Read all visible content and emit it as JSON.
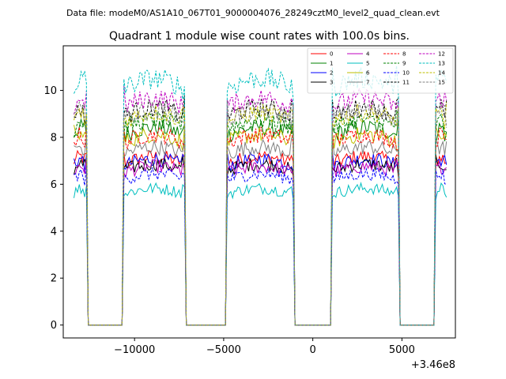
{
  "figure": {
    "suptitle": "Data file: modeM0/AS1A10_067T01_9000004076_28249cztM0_level2_quad_clean.evt"
  },
  "chart_data": {
    "type": "line",
    "title": "Quadrant 1 module wise count rates with 100.0s bins.",
    "xlabel": "",
    "ylabel": "",
    "x_offset_label": "+3.46e8",
    "x_offset": 346000000,
    "xlim": [
      -14000,
      8000
    ],
    "ylim": [
      -0.55,
      11.9
    ],
    "x_ticks": [
      -10000,
      -5000,
      0,
      5000
    ],
    "x_tick_labels": [
      "−10000",
      "−5000",
      "0",
      "5000"
    ],
    "y_ticks": [
      0,
      2,
      4,
      6,
      8,
      10
    ],
    "y_tick_labels": [
      "0",
      "2",
      "4",
      "6",
      "8",
      "10"
    ],
    "grid": false,
    "legend_location": "upper right",
    "legend_columns": 4,
    "bin_size_s": 100,
    "orbit_segments": [
      {
        "start": -13400,
        "end": -12700
      },
      {
        "start": -10600,
        "end": -7200
      },
      {
        "start": -4800,
        "end": -1100
      },
      {
        "start": 1100,
        "end": 4800
      },
      {
        "start": 6900,
        "end": 7500
      }
    ],
    "series": [
      {
        "name": "0",
        "color": "#ff0000",
        "dash": "solid",
        "level": 6.9
      },
      {
        "name": "1",
        "color": "#008000",
        "dash": "solid",
        "level": 8.1
      },
      {
        "name": "2",
        "color": "#0000ff",
        "dash": "solid",
        "level": 6.8
      },
      {
        "name": "3",
        "color": "#000000",
        "dash": "solid",
        "level": 6.6
      },
      {
        "name": "4",
        "color": "#bf00bf",
        "dash": "solid",
        "level": 6.5
      },
      {
        "name": "5",
        "color": "#00bfbf",
        "dash": "solid",
        "level": 5.6
      },
      {
        "name": "6",
        "color": "#bfbf00",
        "dash": "solid",
        "level": 7.8
      },
      {
        "name": "7",
        "color": "#808080",
        "dash": "solid",
        "level": 7.3
      },
      {
        "name": "8",
        "color": "#ff0000",
        "dash": "dashed",
        "level": 7.8
      },
      {
        "name": "9",
        "color": "#008000",
        "dash": "dashed",
        "level": 8.4
      },
      {
        "name": "10",
        "color": "#0000ff",
        "dash": "dashed",
        "level": 6.2
      },
      {
        "name": "11",
        "color": "#000000",
        "dash": "dashed",
        "level": 8.9
      },
      {
        "name": "12",
        "color": "#bf00bf",
        "dash": "dashed",
        "level": 9.3
      },
      {
        "name": "13",
        "color": "#00bfbf",
        "dash": "dashed",
        "level": 10.1
      },
      {
        "name": "14",
        "color": "#bfbf00",
        "dash": "dashed",
        "level": 8.7
      },
      {
        "name": "15",
        "color": "#808080",
        "dash": "dashed",
        "level": 8.8
      }
    ]
  }
}
